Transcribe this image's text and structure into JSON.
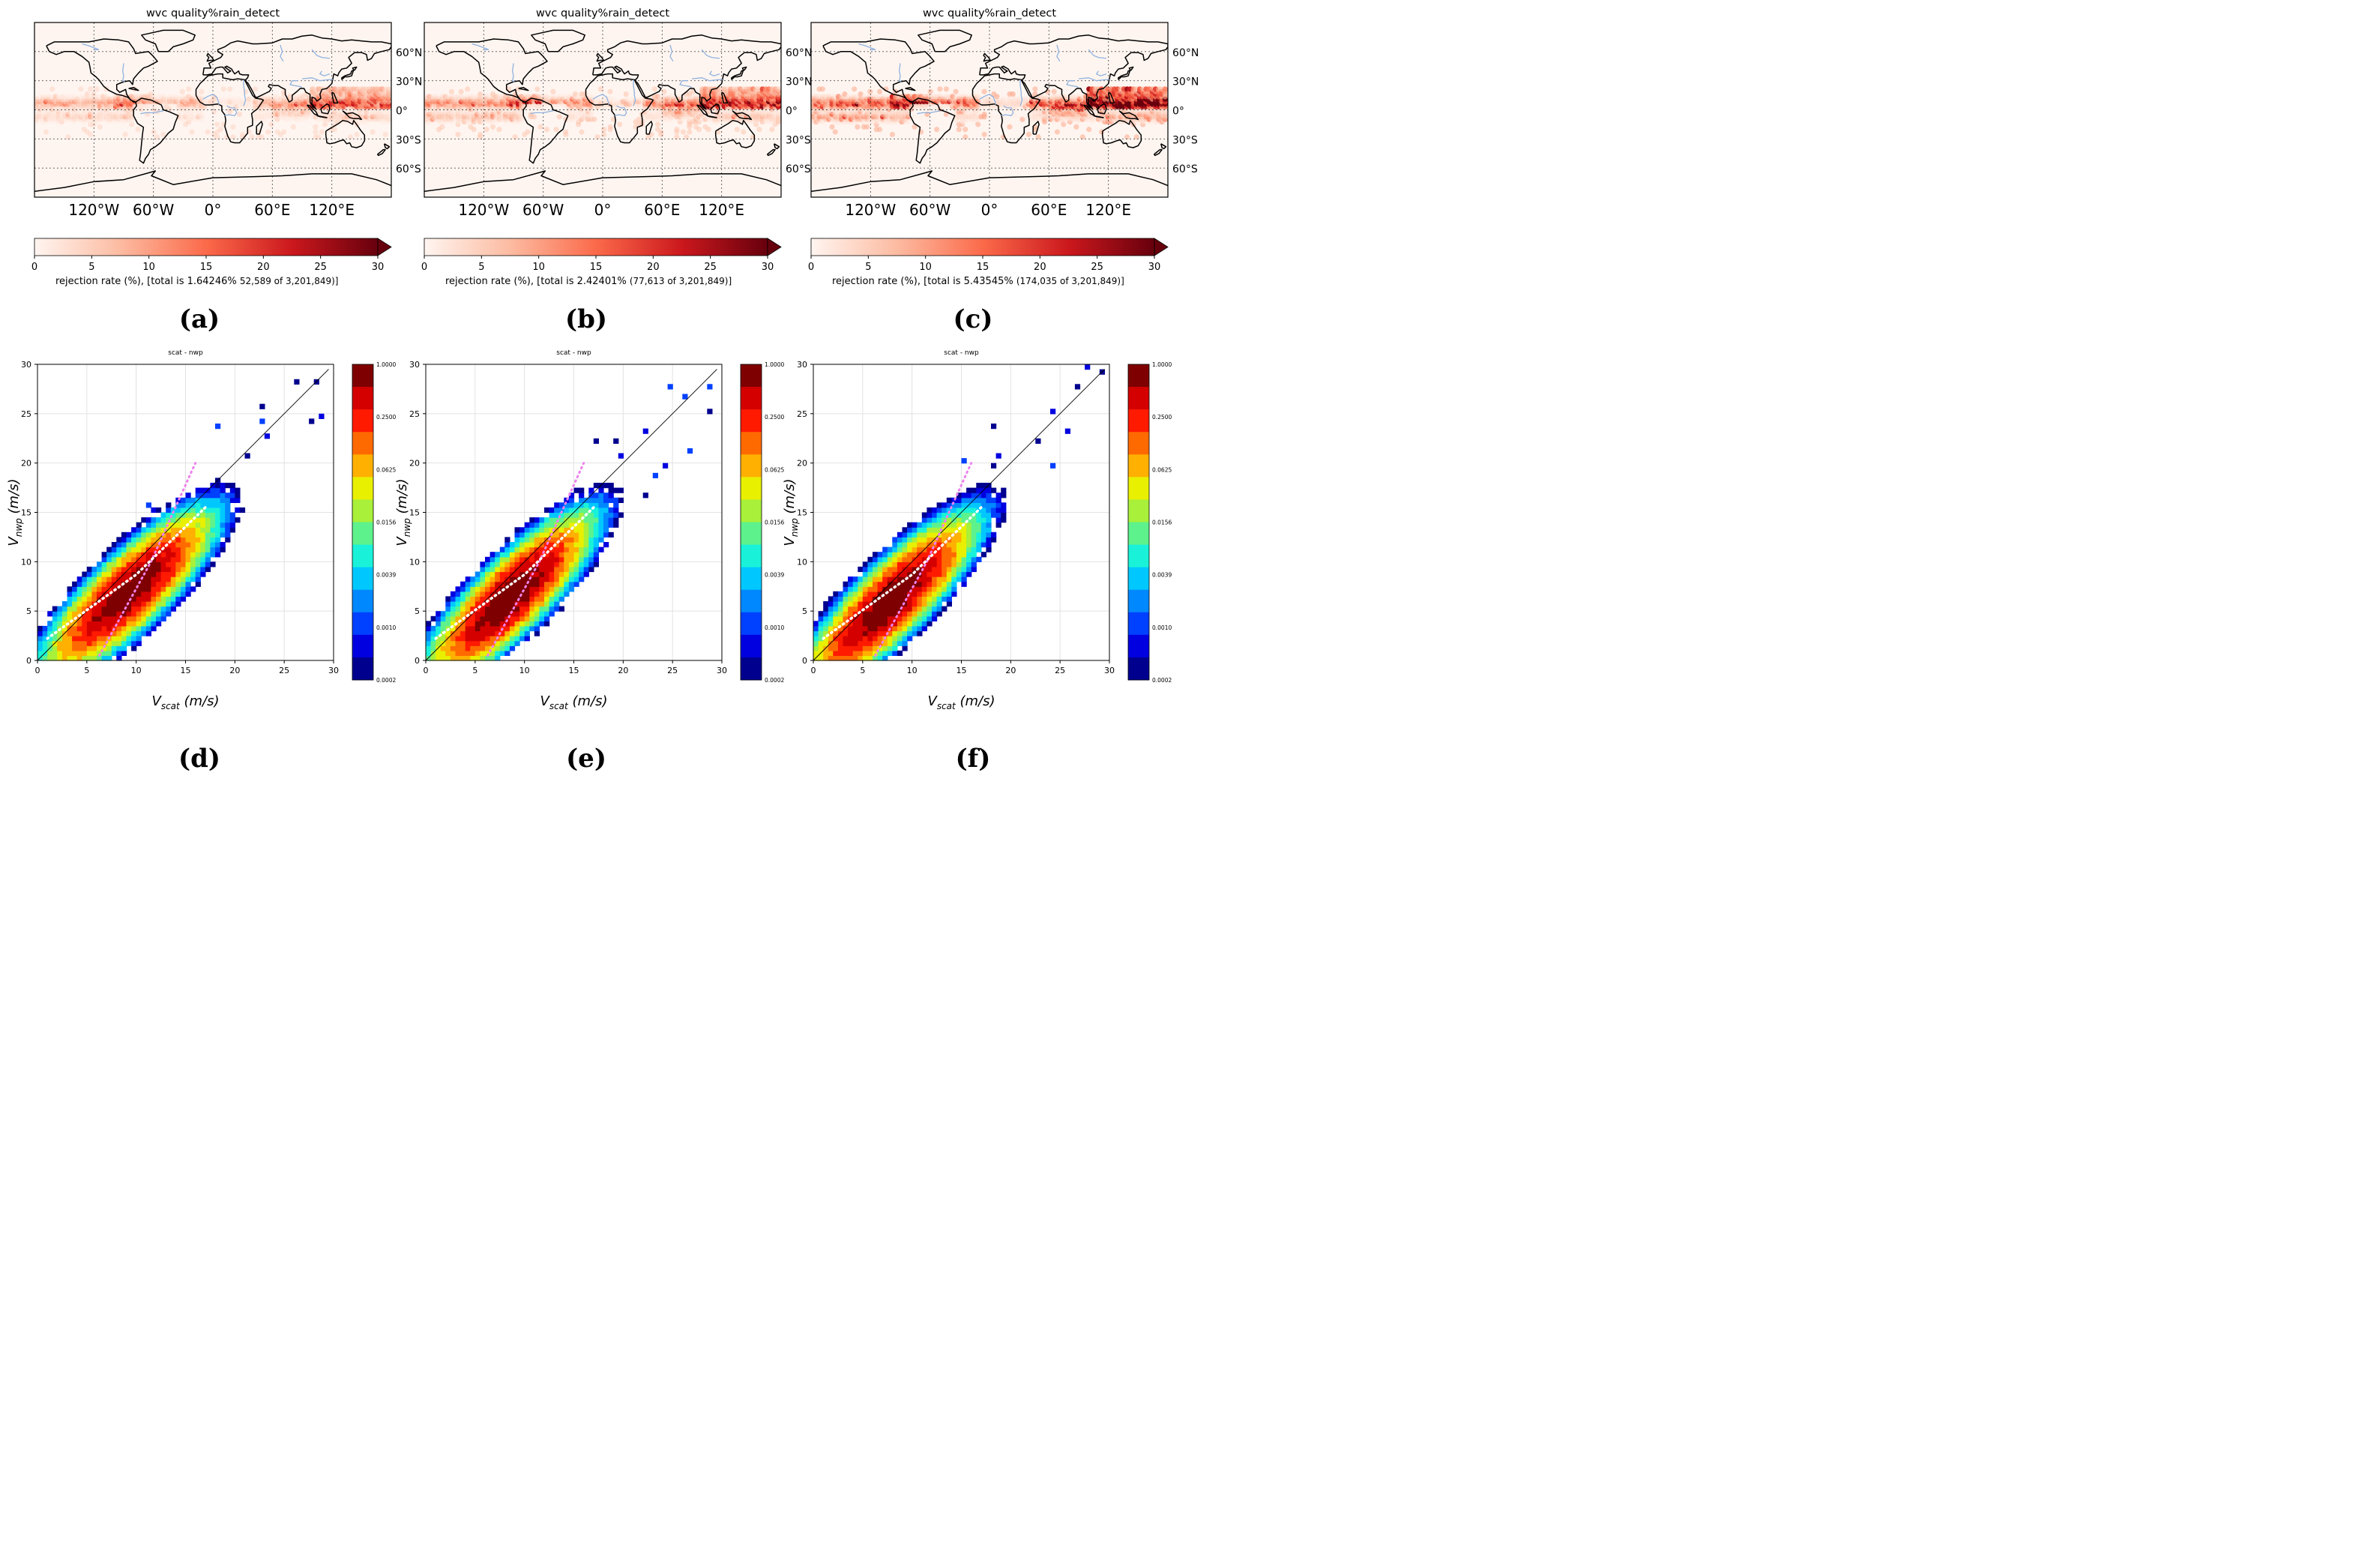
{
  "figure": {
    "labels": [
      "(a)",
      "(b)",
      "(c)",
      "(d)",
      "(e)",
      "(f)"
    ]
  },
  "chart_data": [
    {
      "type": "heatmap",
      "panel": "(a)",
      "title": "wvc quality%rain_detect",
      "xticks": [
        "120°W",
        "60°W",
        "0°",
        "60°E",
        "120°E"
      ],
      "yticks": [
        "60°N",
        "30°N",
        "0°",
        "30°S",
        "60°S"
      ],
      "colorbar": {
        "ticks": [
          "0",
          "5",
          "10",
          "15",
          "20",
          "25",
          "30"
        ],
        "range": [
          0,
          30
        ],
        "extend": "max",
        "colormap": [
          "#fff5f0",
          "#fcbba1",
          "#fb6a4a",
          "#cb181d",
          "#67000d"
        ]
      },
      "caption": {
        "prefix": "rejection rate (%), [total is",
        "rate": "1.64246%",
        "count": "52,589 of 3,201,849)]"
      },
      "intensity": 0.55
    },
    {
      "type": "heatmap",
      "panel": "(b)",
      "title": "wvc quality%rain_detect",
      "xticks": [
        "120°W",
        "60°W",
        "0°",
        "60°E",
        "120°E"
      ],
      "yticks": [
        "60°N",
        "30°N",
        "0°",
        "30°S",
        "60°S"
      ],
      "colorbar": {
        "ticks": [
          "0",
          "5",
          "10",
          "15",
          "20",
          "25",
          "30"
        ],
        "range": [
          0,
          30
        ],
        "extend": "max",
        "colormap": [
          "#fff5f0",
          "#fcbba1",
          "#fb6a4a",
          "#cb181d",
          "#67000d"
        ]
      },
      "caption": {
        "prefix": "rejection rate (%), [total is",
        "rate": "2.42401%",
        "count": "(77,613 of 3,201,849)]"
      },
      "intensity": 0.72
    },
    {
      "type": "heatmap",
      "panel": "(c)",
      "title": "wvc quality%rain_detect",
      "xticks": [
        "120°W",
        "60°W",
        "0°",
        "60°E",
        "120°E"
      ],
      "yticks": [
        "60°N",
        "30°N",
        "0°",
        "30°S",
        "60°S"
      ],
      "colorbar": {
        "ticks": [
          "0",
          "5",
          "10",
          "15",
          "20",
          "25",
          "30"
        ],
        "range": [
          0,
          30
        ],
        "extend": "max",
        "colormap": [
          "#fff5f0",
          "#fcbba1",
          "#fb6a4a",
          "#cb181d",
          "#67000d"
        ]
      },
      "caption": {
        "prefix": "rejection rate (%), [total is",
        "rate": "5.43545%",
        "count": "(174,035 of 3,201,849)]"
      },
      "intensity": 1.0
    },
    {
      "type": "heatmap",
      "panel": "(d)",
      "title": "scat - nwp",
      "xlabel": "V_scat (m/s)",
      "ylabel": "V_nwp (m/s)",
      "xlim": [
        0,
        30
      ],
      "ylim": [
        0,
        30
      ],
      "xticks": [
        "0",
        "5",
        "10",
        "15",
        "20",
        "25",
        "30"
      ],
      "yticks": [
        "0",
        "5",
        "10",
        "15",
        "20",
        "25",
        "30"
      ],
      "colorbar": {
        "ticks": [
          "1.0000",
          "0.2500",
          "0.0625",
          "0.0156",
          "0.0039",
          "0.0010",
          "0.0002"
        ],
        "colors": [
          "#7f0000",
          "#d40000",
          "#ff1a00",
          "#ff6a00",
          "#ffb000",
          "#e8f000",
          "#a8f03a",
          "#5ef28c",
          "#19f2d8",
          "#00c8ff",
          "#0088ff",
          "#0040ff",
          "#0000e0",
          "#00008f"
        ]
      },
      "density": {
        "center": [
          9.3,
          7.0
        ],
        "sx": 3.1,
        "sy": 3.0,
        "rho": 0.83
      },
      "spread": 0.85
    },
    {
      "type": "heatmap",
      "panel": "(e)",
      "title": "scat - nwp",
      "xlabel": "V_scat (m/s)",
      "ylabel": "V_nwp (m/s)",
      "xlim": [
        0,
        30
      ],
      "ylim": [
        0,
        30
      ],
      "xticks": [
        "0",
        "5",
        "10",
        "15",
        "20",
        "25",
        "30"
      ],
      "yticks": [
        "0",
        "5",
        "10",
        "15",
        "20",
        "25",
        "30"
      ],
      "colorbar": {
        "ticks": [
          "1.0000",
          "0.2500",
          "0.0625",
          "0.0156",
          "0.0039",
          "0.0010",
          "0.0002"
        ],
        "colors": [
          "#7f0000",
          "#d40000",
          "#ff1a00",
          "#ff6a00",
          "#ffb000",
          "#e8f000",
          "#a8f03a",
          "#5ef28c",
          "#19f2d8",
          "#00c8ff",
          "#0088ff",
          "#0040ff",
          "#0000e0",
          "#00008f"
        ]
      },
      "density": {
        "center": [
          8.6,
          6.5
        ],
        "sx": 3.0,
        "sy": 3.0,
        "rho": 0.84
      },
      "spread": 0.95
    },
    {
      "type": "heatmap",
      "panel": "(f)",
      "title": "scat - nwp",
      "xlabel": "V_scat (m/s)",
      "ylabel": "V_nwp (m/s)",
      "xlim": [
        0,
        30
      ],
      "ylim": [
        0,
        30
      ],
      "xticks": [
        "0",
        "5",
        "10",
        "15",
        "20",
        "25",
        "30"
      ],
      "yticks": [
        "0",
        "5",
        "10",
        "15",
        "20",
        "25",
        "30"
      ],
      "colorbar": {
        "ticks": [
          "1.0000",
          "0.2500",
          "0.0625",
          "0.0156",
          "0.0039",
          "0.0010",
          "0.0002"
        ],
        "colors": [
          "#7f0000",
          "#d40000",
          "#ff1a00",
          "#ff6a00",
          "#ffb000",
          "#e8f000",
          "#a8f03a",
          "#5ef28c",
          "#19f2d8",
          "#00c8ff",
          "#0088ff",
          "#0040ff",
          "#0000e0",
          "#00008f"
        ]
      },
      "density": {
        "center": [
          7.8,
          6.0
        ],
        "sx": 3.0,
        "sy": 3.0,
        "rho": 0.85
      },
      "spread": 1.1
    }
  ]
}
